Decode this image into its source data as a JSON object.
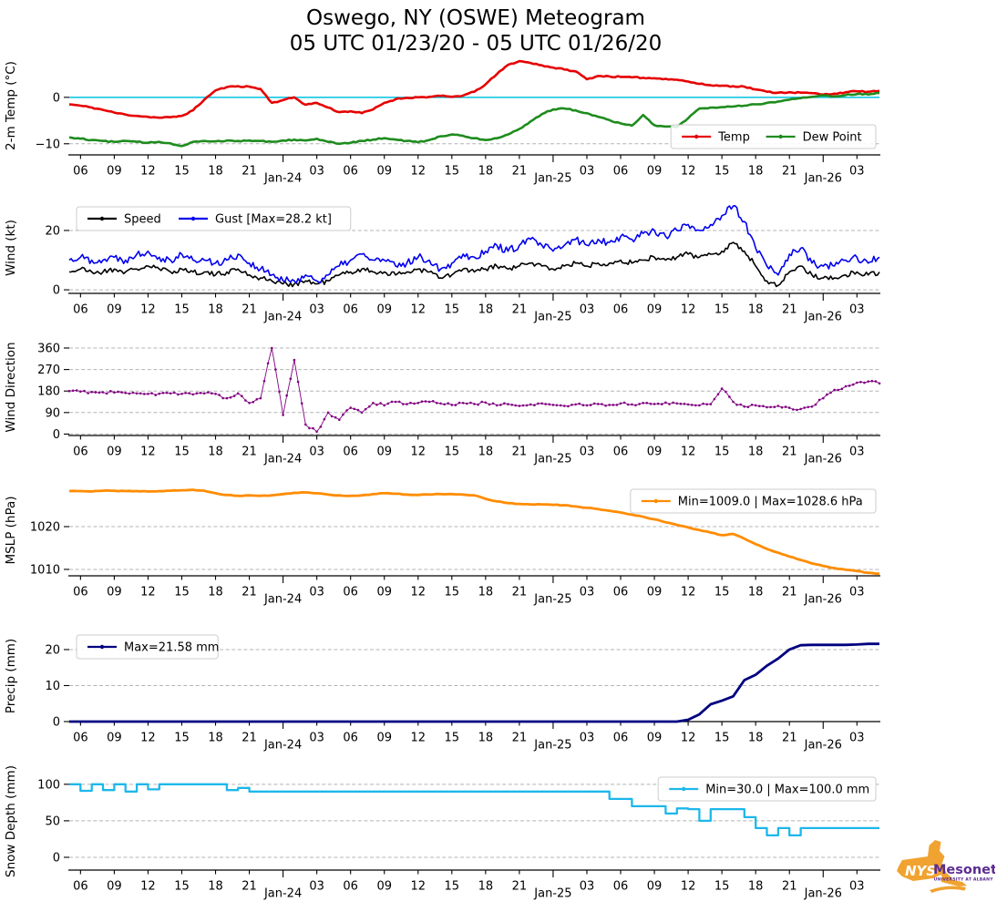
{
  "chart_data": {
    "type": "line",
    "title": "Oswego, NY (OSWE) Meteogram",
    "subtitle": "05 UTC 01/23/20 - 05 UTC 01/26/20",
    "x": {
      "start_hour": 5,
      "end_hour": 77,
      "step_hours": 1,
      "unit": "UTC hour from 00 UTC 01/23/20"
    },
    "grid": true,
    "x_ticks": [
      {
        "h": 6,
        "label": "06"
      },
      {
        "h": 9,
        "label": "09"
      },
      {
        "h": 12,
        "label": "12"
      },
      {
        "h": 15,
        "label": "15"
      },
      {
        "h": 18,
        "label": "18"
      },
      {
        "h": 21,
        "label": "21"
      },
      {
        "h": 24,
        "label": "Jan-24",
        "day": true
      },
      {
        "h": 27,
        "label": "03"
      },
      {
        "h": 30,
        "label": "06"
      },
      {
        "h": 33,
        "label": "09"
      },
      {
        "h": 36,
        "label": "12"
      },
      {
        "h": 39,
        "label": "15"
      },
      {
        "h": 42,
        "label": "18"
      },
      {
        "h": 45,
        "label": "21"
      },
      {
        "h": 48,
        "label": "Jan-25",
        "day": true
      },
      {
        "h": 51,
        "label": "03"
      },
      {
        "h": 54,
        "label": "06"
      },
      {
        "h": 57,
        "label": "09"
      },
      {
        "h": 60,
        "label": "12"
      },
      {
        "h": 63,
        "label": "15"
      },
      {
        "h": 66,
        "label": "18"
      },
      {
        "h": 69,
        "label": "21"
      },
      {
        "h": 72,
        "label": "Jan-26",
        "day": true
      },
      {
        "h": 75,
        "label": "03"
      }
    ],
    "panels": [
      {
        "id": "temp",
        "ylabel": "2-m Temp (°C)",
        "ylim": [
          -12.4,
          8.8
        ],
        "yticks": [
          {
            "v": 0,
            "label": "0"
          },
          {
            "v": -10,
            "label": "−10"
          }
        ],
        "ref_line": {
          "v": 0,
          "color": "#00c3e0"
        },
        "legend": {
          "pos": "lower-right",
          "items": [
            {
              "label": "Temp",
              "color": "#e60000"
            },
            {
              "label": "Dew Point",
              "color": "#1e8c1e"
            }
          ]
        },
        "series": [
          {
            "name": "Temp",
            "color": "#e60000",
            "style": {
              "width": 2.6,
              "subdiv": 4,
              "jitter": 0.14,
              "seed": 11
            },
            "values": [
              -1.5,
              -1.8,
              -2.2,
              -2.7,
              -3.3,
              -3.7,
              -4.0,
              -4.2,
              -4.4,
              -4.3,
              -4.0,
              -2.8,
              -0.5,
              1.5,
              2.2,
              2.4,
              2.3,
              1.8,
              -1.2,
              -0.6,
              0.0,
              -1.6,
              -1.2,
              -2.2,
              -3.2,
              -3.0,
              -3.4,
              -2.6,
              -1.2,
              -0.4,
              -0.1,
              0.0,
              0.1,
              0.3,
              0.1,
              0.4,
              1.2,
              2.8,
              5.0,
              7.0,
              7.8,
              7.4,
              6.9,
              6.4,
              6.0,
              5.6,
              3.9,
              4.6,
              4.5,
              4.4,
              4.3,
              4.2,
              4.1,
              4.0,
              3.8,
              3.4,
              2.9,
              2.6,
              2.5,
              2.4,
              2.3,
              1.7,
              1.2,
              1.0,
              1.1,
              1.0,
              0.9,
              0.6,
              0.8,
              1.1,
              1.3,
              1.2,
              1.4
            ]
          },
          {
            "name": "Dew Point",
            "color": "#1e8c1e",
            "style": {
              "width": 2.6,
              "subdiv": 4,
              "jitter": 0.14,
              "seed": 12
            },
            "values": [
              -8.6,
              -8.9,
              -9.2,
              -9.4,
              -9.6,
              -9.4,
              -9.6,
              -9.8,
              -9.6,
              -9.9,
              -10.5,
              -9.6,
              -9.4,
              -9.5,
              -9.3,
              -9.4,
              -9.3,
              -9.4,
              -9.6,
              -9.3,
              -9.1,
              -9.3,
              -8.9,
              -9.6,
              -10.0,
              -9.8,
              -9.4,
              -9.1,
              -8.8,
              -9.1,
              -9.4,
              -9.7,
              -9.2,
              -8.4,
              -8.0,
              -8.3,
              -8.8,
              -9.2,
              -8.8,
              -8.0,
              -6.8,
              -5.2,
              -3.6,
              -2.6,
              -2.4,
              -2.8,
              -3.4,
              -4.2,
              -4.9,
              -5.6,
              -6.1,
              -3.8,
              -6.0,
              -6.3,
              -6.4,
              -4.5,
              -2.4,
              -2.2,
              -2.1,
              -2.0,
              -1.8,
              -1.5,
              -1.2,
              -0.9,
              -0.5,
              -0.2,
              0.1,
              0.4,
              0.2,
              0.5,
              0.7,
              0.6,
              0.9
            ]
          }
        ]
      },
      {
        "id": "wind",
        "ylabel": "Wind (kt)",
        "ylim": [
          -1.2,
          29.5
        ],
        "yticks": [
          {
            "v": 20,
            "label": "20"
          },
          {
            "v": 0,
            "label": "0"
          }
        ],
        "legend": {
          "pos": "upper-left",
          "items": [
            {
              "label": "Speed",
              "color": "#000000"
            },
            {
              "label": "Gust [Max=28.2 kt]",
              "color": "#0000ee"
            }
          ]
        },
        "series": [
          {
            "name": "Speed",
            "color": "#000000",
            "style": {
              "width": 1.6,
              "subdiv": 6,
              "jitter": 0.9,
              "seed": 21,
              "clamp": [
                0.2,
                29
              ]
            },
            "values": [
              6,
              7,
              6,
              6,
              7,
              6,
              7,
              8,
              7,
              6,
              7,
              6,
              6,
              5,
              6,
              7,
              5,
              4,
              3,
              2,
              2,
              3,
              2,
              3,
              5,
              6,
              7,
              6,
              6,
              5,
              6,
              7,
              6,
              4,
              5,
              7,
              6,
              7,
              8,
              7,
              8,
              9,
              8,
              7,
              8,
              9,
              8,
              9,
              9,
              10,
              9,
              10,
              11,
              10,
              11,
              12,
              11,
              12,
              13,
              16,
              13,
              8,
              3,
              1.5,
              6,
              8,
              5,
              4,
              4,
              5,
              6,
              5,
              6
            ]
          },
          {
            "name": "Gust",
            "color": "#0000ee",
            "style": {
              "width": 1.6,
              "subdiv": 6,
              "jitter": 1.3,
              "seed": 22,
              "clamp": [
                0.4,
                29.3
              ]
            },
            "values": [
              10,
              11,
              10,
              10,
              11,
              10,
              12,
              13,
              11,
              10,
              12,
              10,
              10,
              9,
              10,
              12,
              9,
              7,
              5,
              3,
              3,
              5,
              3,
              5,
              8,
              10,
              12,
              10,
              10,
              8,
              9,
              11,
              10,
              7,
              9,
              12,
              11,
              13,
              15,
              13,
              15,
              17,
              15,
              13,
              15,
              17,
              15,
              17,
              16,
              18,
              17,
              19,
              20,
              18,
              20,
              22,
              20,
              22,
              25,
              28.2,
              23,
              14,
              8,
              5,
              12,
              14,
              9,
              8,
              8,
              10,
              11,
              9,
              11
            ]
          }
        ]
      },
      {
        "id": "wdir",
        "ylabel": "Wind Direction",
        "ylim": [
          -6,
          398
        ],
        "yticks": [
          {
            "v": 360,
            "label": "360"
          },
          {
            "v": 270,
            "label": "270"
          },
          {
            "v": 180,
            "label": "180"
          },
          {
            "v": 90,
            "label": "90"
          },
          {
            "v": 0,
            "label": "0"
          }
        ],
        "series": [
          {
            "name": "Wind Direction",
            "color": "#800080",
            "style": {
              "width": 0.9,
              "subdiv": 3,
              "jitter": 6,
              "seed": 31,
              "clamp": [
                0,
                360
              ],
              "markers": 1.3
            },
            "values": [
              180,
              178,
              176,
              175,
              174,
              172,
              170,
              168,
              169,
              170,
              168,
              166,
              170,
              168,
              150,
              170,
              130,
              150,
              360,
              80,
              310,
              40,
              10,
              90,
              60,
              110,
              90,
              130,
              120,
              135,
              125,
              130,
              135,
              128,
              122,
              130,
              126,
              132,
              120,
              125,
              118,
              124,
              128,
              122,
              118,
              124,
              120,
              126,
              122,
              128,
              124,
              130,
              126,
              132,
              128,
              124,
              120,
              125,
              190,
              135,
              115,
              120,
              112,
              118,
              110,
              105,
              115,
              150,
              185,
              200,
              215,
              220,
              212
            ]
          }
        ]
      },
      {
        "id": "mslp",
        "ylabel": "MSLP (hPa)",
        "ylim": [
          1008.5,
          1029.8
        ],
        "yticks": [
          {
            "v": 1020,
            "label": "1020"
          },
          {
            "v": 1010,
            "label": "1010"
          }
        ],
        "legend": {
          "pos": "upper-right",
          "items": [
            {
              "label": "Min=1009.0 | Max=1028.6 hPa",
              "color": "#ff8c00"
            }
          ]
        },
        "series": [
          {
            "name": "MSLP",
            "color": "#ff8c00",
            "style": {
              "width": 2.8,
              "subdiv": 3,
              "jitter": 0.08,
              "seed": 41
            },
            "values": [
              1028.3,
              1028.3,
              1028.2,
              1028.4,
              1028.4,
              1028.3,
              1028.3,
              1028.2,
              1028.3,
              1028.4,
              1028.5,
              1028.6,
              1028.4,
              1027.8,
              1027.4,
              1027.2,
              1027.3,
              1027.2,
              1027.3,
              1027.6,
              1027.9,
              1028.0,
              1027.8,
              1027.5,
              1027.3,
              1027.2,
              1027.3,
              1027.6,
              1027.8,
              1027.7,
              1027.5,
              1027.4,
              1027.5,
              1027.6,
              1027.6,
              1027.5,
              1027.3,
              1026.5,
              1025.9,
              1025.5,
              1025.3,
              1025.2,
              1025.2,
              1025.1,
              1025.0,
              1024.7,
              1024.4,
              1024.1,
              1023.7,
              1023.3,
              1022.8,
              1022.3,
              1021.7,
              1021.0,
              1020.4,
              1019.8,
              1019.2,
              1018.6,
              1018.0,
              1018.3,
              1017.2,
              1015.9,
              1014.8,
              1013.9,
              1013.0,
              1012.2,
              1011.4,
              1010.8,
              1010.3,
              1009.9,
              1009.6,
              1009.2,
              1009.0
            ]
          }
        ]
      },
      {
        "id": "precip",
        "ylabel": "Precip (mm)",
        "ylim": [
          0,
          25.3
        ],
        "yticks": [
          {
            "v": 20,
            "label": "20"
          },
          {
            "v": 10,
            "label": "10"
          },
          {
            "v": 0,
            "label": "0"
          }
        ],
        "legend": {
          "pos": "upper-left",
          "items": [
            {
              "label": "Max=21.58 mm",
              "color": "#000080"
            }
          ]
        },
        "series": [
          {
            "name": "Precip",
            "color": "#000080",
            "style": {
              "width": 2.8,
              "subdiv": 1,
              "jitter": 0,
              "seed": 51
            },
            "values": [
              0,
              0,
              0,
              0,
              0,
              0,
              0,
              0,
              0,
              0,
              0,
              0,
              0,
              0,
              0,
              0,
              0,
              0,
              0,
              0,
              0,
              0,
              0,
              0,
              0,
              0,
              0,
              0,
              0,
              0,
              0,
              0,
              0,
              0,
              0,
              0,
              0,
              0,
              0,
              0,
              0,
              0,
              0,
              0,
              0,
              0,
              0,
              0,
              0,
              0,
              0,
              0,
              0,
              0,
              0,
              0.5,
              2,
              4.8,
              5.8,
              7,
              11.5,
              13,
              15.5,
              17.5,
              20,
              21.2,
              21.3,
              21.3,
              21.3,
              21.3,
              21.4,
              21.58,
              21.58
            ]
          }
        ]
      },
      {
        "id": "snow",
        "ylabel": "Snow Depth (mm)",
        "ylim": [
          -17.5,
          116
        ],
        "yticks": [
          {
            "v": 100,
            "label": "100"
          },
          {
            "v": 50,
            "label": "50"
          },
          {
            "v": 0,
            "label": "0"
          }
        ],
        "legend": {
          "pos": "upper-right",
          "items": [
            {
              "label": "Min=30.0 | Max=100.0 mm",
              "color": "#1db7ea"
            }
          ]
        },
        "series": [
          {
            "name": "Snow Depth",
            "color": "#1db7ea",
            "style": {
              "width": 2.3,
              "step": true,
              "seed": 61
            },
            "values": [
              100,
              91,
              100,
              92,
              100,
              90,
              100,
              93,
              100,
              100,
              100,
              100,
              100,
              100,
              92,
              95,
              90,
              90,
              90,
              90,
              90,
              90,
              90,
              90,
              90,
              90,
              90,
              90,
              90,
              90,
              90,
              90,
              90,
              90,
              90,
              90,
              90,
              90,
              90,
              90,
              90,
              90,
              90,
              90,
              90,
              90,
              90,
              90,
              80,
              80,
              70,
              70,
              70,
              60,
              67,
              66,
              50,
              66,
              66,
              66,
              55,
              40,
              30,
              40,
              30,
              40,
              40,
              40,
              40,
              40,
              40,
              40,
              40
            ]
          }
        ]
      }
    ]
  },
  "logo": {
    "nys": "NYS",
    "mesonet": "Mesonet",
    "subtitle": "UNIVERSITY AT ALBANY",
    "state_color": "#F0A330",
    "text_color": "#5C2D91"
  }
}
